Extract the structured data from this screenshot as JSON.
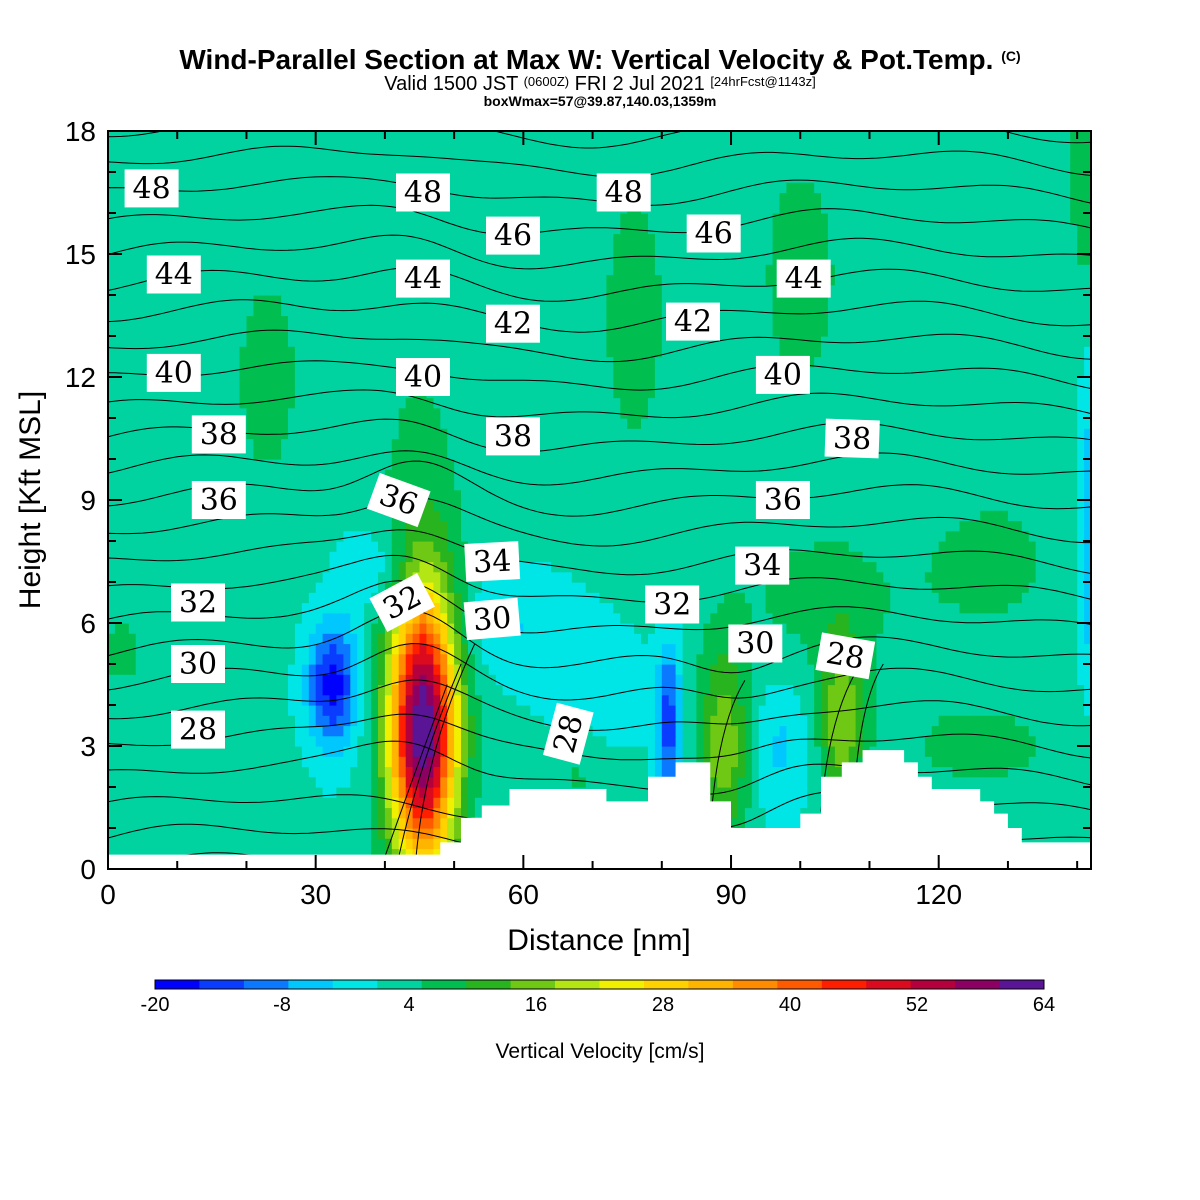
{
  "title": {
    "main": "Wind-Parallel Section at Max W: Vertical Velocity & Pot.Temp.",
    "main_mark": "(C)",
    "valid_prefix": "Valid 1500 JST",
    "valid_utc": "(0600Z)",
    "valid_date": "FRI 2 Jul 2021",
    "valid_fcst": "[24hrFcst@1143z]",
    "box_info": "boxWmax=57@39.87,140.03,1359m"
  },
  "chart_data": {
    "type": "heatmap",
    "xlabel": "Distance [nm]",
    "ylabel": "Height [Kft MSL]",
    "xlim": [
      0,
      142
    ],
    "ylim": [
      0,
      18
    ],
    "x_ticks": [
      0,
      30,
      60,
      90,
      120
    ],
    "y_ticks": [
      0,
      3,
      6,
      9,
      12,
      15,
      18
    ],
    "colorbar": {
      "label": "Vertical Velocity [cm/s]",
      "min": -20,
      "max": 64,
      "step": 4,
      "tick_values": [
        -20,
        -8,
        4,
        16,
        28,
        40,
        52,
        64
      ],
      "colors": [
        "#0000ff",
        "#0a3cff",
        "#0a78ff",
        "#00c8ff",
        "#00e6e6",
        "#00d2a0",
        "#00be50",
        "#28b41e",
        "#6ec814",
        "#b4e614",
        "#f0f000",
        "#ffd200",
        "#ffb400",
        "#ff8c00",
        "#ff5a00",
        "#ff1e00",
        "#dc0a1e",
        "#b4003c",
        "#8c0064",
        "#5a1496"
      ]
    },
    "background_w": 1,
    "updrafts": [
      {
        "x": 45.5,
        "y": 3.4,
        "sx": 3.4,
        "sy": 2.4,
        "w": 59
      },
      {
        "x": 89,
        "y": 3.0,
        "sx": 2.6,
        "sy": 1.7,
        "w": 14
      },
      {
        "x": 106,
        "y": 3.6,
        "sx": 2.2,
        "sy": 1.5,
        "w": 14
      },
      {
        "x": 23,
        "y": 12.0,
        "sx": 5,
        "sy": 2.8,
        "w": 4
      },
      {
        "x": 45,
        "y": 9.2,
        "sx": 4.5,
        "sy": 3,
        "w": 4
      },
      {
        "x": 76,
        "y": 13.5,
        "sx": 5,
        "sy": 3.5,
        "w": 4
      },
      {
        "x": 100,
        "y": 14.5,
        "sx": 6,
        "sy": 3,
        "w": 4
      },
      {
        "x": 103,
        "y": 6.5,
        "sx": 10,
        "sy": 1.5,
        "w": 4
      },
      {
        "x": 128,
        "y": 7.5,
        "sx": 8,
        "sy": 1.5,
        "w": 4
      },
      {
        "x": 126,
        "y": 3.0,
        "sx": 10,
        "sy": 1.0,
        "w": 4
      },
      {
        "x": 2,
        "y": 5.3,
        "sx": 3,
        "sy": 0.8,
        "w": 4
      },
      {
        "x": 68,
        "y": 2.5,
        "sx": 3,
        "sy": 1,
        "w": 4
      },
      {
        "x": 141,
        "y": 17.0,
        "sx": 1.5,
        "sy": 2,
        "w": 6
      }
    ],
    "downdrafts": [
      {
        "x": 32.5,
        "y": 4.5,
        "sx": 2.6,
        "sy": 1.1,
        "w": -19
      },
      {
        "x": 81,
        "y": 3.6,
        "sx": 1.3,
        "sy": 1.4,
        "w": -15
      },
      {
        "x": 40,
        "y": 7.3,
        "sx": 4,
        "sy": 0.8,
        "w": -6
      },
      {
        "x": 58,
        "y": 6.0,
        "sx": 6,
        "sy": 0.9,
        "w": -5
      },
      {
        "x": 70,
        "y": 4.5,
        "sx": 5,
        "sy": 1.2,
        "w": -5
      },
      {
        "x": 97,
        "y": 3.0,
        "sx": 3,
        "sy": 1.2,
        "w": -6
      },
      {
        "x": 142,
        "y": 8.0,
        "sx": 1.2,
        "sy": 2.5,
        "w": -10
      }
    ],
    "terrain": [
      [
        0,
        0.35
      ],
      [
        48,
        0.35
      ],
      [
        48,
        0.65
      ],
      [
        51,
        0.65
      ],
      [
        51,
        1.25
      ],
      [
        54,
        1.25
      ],
      [
        54,
        1.55
      ],
      [
        58,
        1.55
      ],
      [
        58,
        1.95
      ],
      [
        72,
        1.95
      ],
      [
        72,
        1.65
      ],
      [
        78,
        1.65
      ],
      [
        78,
        2.25
      ],
      [
        82,
        2.25
      ],
      [
        82,
        2.6
      ],
      [
        87,
        2.6
      ],
      [
        87,
        1.65
      ],
      [
        90,
        1.65
      ],
      [
        90,
        1.0
      ],
      [
        100,
        1.0
      ],
      [
        100,
        1.35
      ],
      [
        103,
        1.35
      ],
      [
        103,
        2.25
      ],
      [
        106,
        2.25
      ],
      [
        106,
        2.6
      ],
      [
        109,
        2.6
      ],
      [
        109,
        2.9
      ],
      [
        115,
        2.9
      ],
      [
        115,
        2.6
      ],
      [
        117,
        2.6
      ],
      [
        117,
        2.25
      ],
      [
        119,
        2.25
      ],
      [
        119,
        1.95
      ],
      [
        126,
        1.95
      ],
      [
        126,
        1.65
      ],
      [
        128,
        1.65
      ],
      [
        128,
        1.35
      ],
      [
        130,
        1.35
      ],
      [
        130,
        1.0
      ],
      [
        132,
        1.0
      ],
      [
        132,
        0.65
      ],
      [
        142,
        0.65
      ]
    ],
    "theta_levels": {
      "min": 24,
      "max": 49,
      "step": 1
    },
    "theta_labels": [
      {
        "text": "48",
        "x": 6.3,
        "y": 16.6,
        "angle": 0
      },
      {
        "text": "48",
        "x": 45.5,
        "y": 16.5,
        "angle": 0
      },
      {
        "text": "48",
        "x": 74.5,
        "y": 16.5,
        "angle": 0
      },
      {
        "text": "46",
        "x": 58.5,
        "y": 15.45,
        "angle": 0
      },
      {
        "text": "46",
        "x": 87.5,
        "y": 15.5,
        "angle": 0
      },
      {
        "text": "44",
        "x": 9.5,
        "y": 14.5,
        "angle": 0
      },
      {
        "text": "44",
        "x": 45.5,
        "y": 14.4,
        "angle": 0
      },
      {
        "text": "44",
        "x": 100.5,
        "y": 14.4,
        "angle": 0
      },
      {
        "text": "42",
        "x": 58.5,
        "y": 13.3,
        "angle": 0
      },
      {
        "text": "42",
        "x": 84.5,
        "y": 13.35,
        "angle": 0
      },
      {
        "text": "40",
        "x": 9.5,
        "y": 12.1,
        "angle": 0
      },
      {
        "text": "40",
        "x": 45.5,
        "y": 12.0,
        "angle": 0
      },
      {
        "text": "40",
        "x": 97.5,
        "y": 12.05,
        "angle": 0
      },
      {
        "text": "38",
        "x": 16,
        "y": 10.6,
        "angle": 0
      },
      {
        "text": "38",
        "x": 58.5,
        "y": 10.55,
        "angle": 0
      },
      {
        "text": "38",
        "x": 107.5,
        "y": 10.5,
        "angle": 2
      },
      {
        "text": "36",
        "x": 16,
        "y": 9.0,
        "angle": 0
      },
      {
        "text": "36",
        "x": 42,
        "y": 9.0,
        "angle": 20
      },
      {
        "text": "36",
        "x": 97.5,
        "y": 9.0,
        "angle": 0
      },
      {
        "text": "34",
        "x": 55.5,
        "y": 7.5,
        "angle": -3
      },
      {
        "text": "34",
        "x": 94.5,
        "y": 7.4,
        "angle": 0
      },
      {
        "text": "32",
        "x": 13,
        "y": 6.5,
        "angle": 0
      },
      {
        "text": "32",
        "x": 42.5,
        "y": 6.5,
        "angle": -28
      },
      {
        "text": "32",
        "x": 81.5,
        "y": 6.45,
        "angle": 0
      },
      {
        "text": "30",
        "x": 13,
        "y": 5.0,
        "angle": 0
      },
      {
        "text": "30",
        "x": 55.5,
        "y": 6.1,
        "angle": -5
      },
      {
        "text": "30",
        "x": 93.5,
        "y": 5.5,
        "angle": 0
      },
      {
        "text": "28",
        "x": 13,
        "y": 3.4,
        "angle": 0
      },
      {
        "text": "28",
        "x": 66.5,
        "y": 3.3,
        "angle": -75
      },
      {
        "text": "28",
        "x": 106.5,
        "y": 5.2,
        "angle": 10
      }
    ]
  }
}
